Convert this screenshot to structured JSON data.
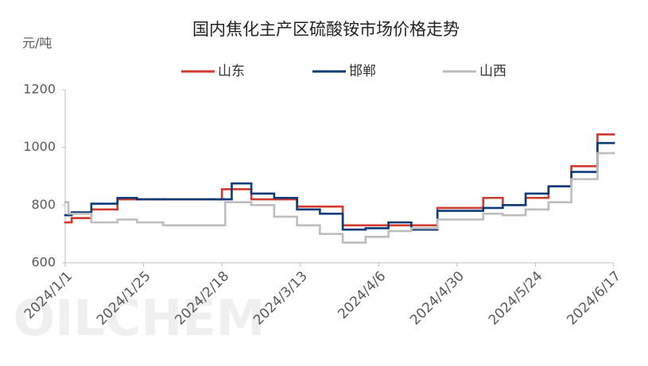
{
  "chart_data": {
    "type": "line",
    "step": "post",
    "title": "国内焦化主产区硫酸铵市场价格走势",
    "y_label": "元/吨",
    "watermark": "OILCHEM",
    "x": [
      "2024/1/1",
      "2024/1/2",
      "2024/1/3",
      "2024/1/9",
      "2024/1/17",
      "2024/1/23",
      "2024/1/31",
      "2024/2/18",
      "2024/2/19",
      "2024/2/21",
      "2024/2/27",
      "2024/3/5",
      "2024/3/12",
      "2024/3/19",
      "2024/3/26",
      "2024/4/2",
      "2024/4/9",
      "2024/4/16",
      "2024/4/24",
      "2024/5/8",
      "2024/5/14",
      "2024/5/21",
      "2024/5/28",
      "2024/6/4",
      "2024/6/12",
      "2024/6/17"
    ],
    "series": [
      {
        "name": "山东",
        "color": "#d03a2f",
        "values": [
          740,
          740,
          755,
          785,
          820,
          820,
          820,
          855,
          855,
          855,
          820,
          820,
          795,
          795,
          730,
          730,
          730,
          730,
          790,
          825,
          800,
          825,
          865,
          935,
          1045,
          1045
        ]
      },
      {
        "name": "邯郸",
        "color": "#0d3b7a",
        "values": [
          765,
          765,
          775,
          805,
          825,
          820,
          820,
          820,
          820,
          875,
          840,
          825,
          785,
          770,
          715,
          720,
          740,
          715,
          780,
          790,
          800,
          840,
          865,
          915,
          1015,
          1015
        ]
      },
      {
        "name": "山西",
        "color": "#bdbdbd",
        "values": [
          810,
          770,
          770,
          740,
          750,
          740,
          730,
          730,
          810,
          810,
          800,
          760,
          730,
          700,
          670,
          690,
          710,
          720,
          750,
          770,
          765,
          785,
          810,
          890,
          980,
          980
        ]
      }
    ],
    "xlim": [
      "2024/1/1",
      "2024/6/17"
    ],
    "xticks": [
      "2024/1/1",
      "2024/1/25",
      "2024/2/18",
      "2024/3/13",
      "2024/4/6",
      "2024/4/30",
      "2024/5/24",
      "2024/6/17"
    ],
    "ylim": [
      600,
      1200
    ],
    "yticks": [
      600,
      800,
      1000,
      1200
    ],
    "legend": "top",
    "grid": false
  }
}
